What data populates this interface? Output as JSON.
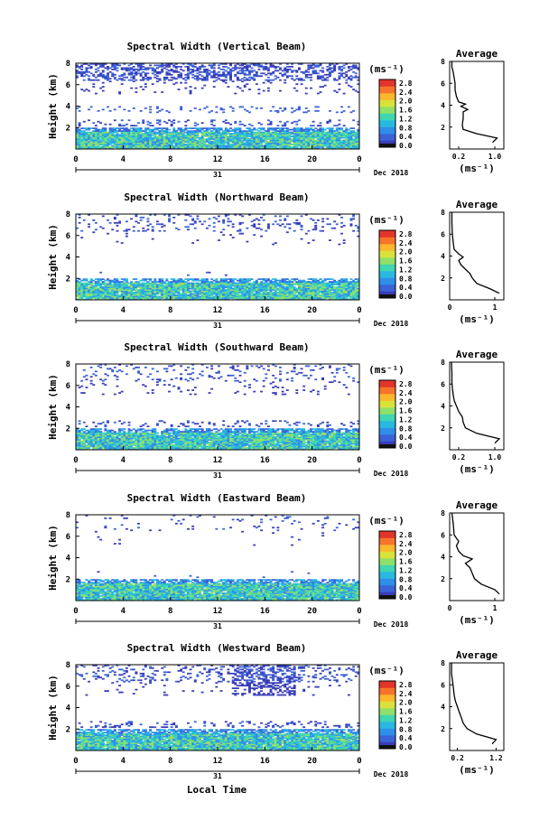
{
  "figure": {
    "xlabel": "Local Time",
    "date_label": "Dec 2018",
    "day_label": "31",
    "ylabel": "Height (km)",
    "colorbar_unit": "(ms⁻¹)",
    "colorbar_ticks": [
      "2.8",
      "2.4",
      "2.0",
      "1.6",
      "1.2",
      "0.8",
      "0.4",
      "0.0"
    ],
    "colormap": [
      "#3a3db8",
      "#3b62d6",
      "#2e8fe8",
      "#29b8e0",
      "#3fd6b0",
      "#8fe06a",
      "#d9e23a",
      "#fbb72d",
      "#f7742a",
      "#e2352a"
    ],
    "avg_title": "Average",
    "avg_xunit": "(ms⁻¹)"
  },
  "chart_data": [
    {
      "type": "heatmap",
      "title": "Spectral Width (Vertical Beam)",
      "x_range": [
        0,
        24
      ],
      "y_range": [
        0,
        8
      ],
      "x_ticks": [
        "0",
        "4",
        "8",
        "12",
        "16",
        "20",
        "0"
      ],
      "y_ticks": [
        "2",
        "4",
        "6",
        "8"
      ],
      "avg_xticks": [
        "0.2",
        "1.0"
      ],
      "avg_xlim": [
        0,
        1.2
      ],
      "avg_profile": [
        [
          0.95,
          0.6
        ],
        [
          1.05,
          1.0
        ],
        [
          0.6,
          1.4
        ],
        [
          0.3,
          1.8
        ],
        [
          0.28,
          2.2
        ],
        [
          0.3,
          2.8
        ],
        [
          0.3,
          3.0
        ],
        [
          0.3,
          3.4
        ],
        [
          0.4,
          3.6
        ],
        [
          0.25,
          3.9
        ],
        [
          0.35,
          4.1
        ],
        [
          0.2,
          4.3
        ],
        [
          0.15,
          4.8
        ],
        [
          0.12,
          5.4
        ],
        [
          0.12,
          6.0
        ],
        [
          0.1,
          6.5
        ],
        [
          0.08,
          7.0
        ],
        [
          0.05,
          7.5
        ],
        [
          0.05,
          8.0
        ]
      ]
    },
    {
      "type": "heatmap",
      "title": "Spectral Width (Northward Beam)",
      "x_range": [
        0,
        24
      ],
      "y_range": [
        0,
        8
      ],
      "x_ticks": [
        "0",
        "4",
        "8",
        "12",
        "16",
        "20",
        "0"
      ],
      "y_ticks": [
        "2",
        "4",
        "6",
        "8"
      ],
      "avg_xticks": [
        "0",
        "1"
      ],
      "avg_xlim": [
        0,
        1.2
      ],
      "avg_profile": [
        [
          1.1,
          0.6
        ],
        [
          0.9,
          1.0
        ],
        [
          0.6,
          1.5
        ],
        [
          0.5,
          2.0
        ],
        [
          0.45,
          2.4
        ],
        [
          0.35,
          2.8
        ],
        [
          0.25,
          3.2
        ],
        [
          0.2,
          3.6
        ],
        [
          0.3,
          3.9
        ],
        [
          0.2,
          4.2
        ],
        [
          0.1,
          4.6
        ],
        [
          0.08,
          5.2
        ],
        [
          0.06,
          6.0
        ],
        [
          0.05,
          7.0
        ],
        [
          0.05,
          8.0
        ]
      ]
    },
    {
      "type": "heatmap",
      "title": "Spectral Width (Southward Beam)",
      "x_range": [
        0,
        24
      ],
      "y_range": [
        0,
        8
      ],
      "x_ticks": [
        "0",
        "4",
        "8",
        "12",
        "16",
        "20",
        "0"
      ],
      "y_ticks": [
        "2",
        "4",
        "6",
        "8"
      ],
      "avg_xticks": [
        "0.2",
        "1.0"
      ],
      "avg_xlim": [
        0,
        1.2
      ],
      "avg_profile": [
        [
          1.0,
          0.6
        ],
        [
          1.1,
          1.0
        ],
        [
          0.6,
          1.5
        ],
        [
          0.35,
          2.0
        ],
        [
          0.3,
          2.5
        ],
        [
          0.28,
          3.0
        ],
        [
          0.2,
          3.5
        ],
        [
          0.15,
          4.0
        ],
        [
          0.1,
          4.5
        ],
        [
          0.08,
          5.0
        ],
        [
          0.06,
          5.6
        ],
        [
          0.05,
          6.2
        ],
        [
          0.05,
          7.0
        ],
        [
          0.04,
          8.0
        ]
      ]
    },
    {
      "type": "heatmap",
      "title": "Spectral Width (Eastward Beam)",
      "x_range": [
        0,
        24
      ],
      "y_range": [
        0,
        8
      ],
      "x_ticks": [
        "0",
        "4",
        "8",
        "12",
        "16",
        "20",
        "0"
      ],
      "y_ticks": [
        "2",
        "4",
        "6",
        "8"
      ],
      "avg_xticks": [
        "0",
        "1"
      ],
      "avg_xlim": [
        0,
        1.2
      ],
      "avg_profile": [
        [
          1.1,
          0.6
        ],
        [
          1.0,
          1.0
        ],
        [
          0.7,
          1.5
        ],
        [
          0.55,
          2.0
        ],
        [
          0.5,
          2.5
        ],
        [
          0.45,
          3.0
        ],
        [
          0.35,
          3.4
        ],
        [
          0.5,
          3.8
        ],
        [
          0.3,
          4.1
        ],
        [
          0.2,
          4.5
        ],
        [
          0.15,
          5.0
        ],
        [
          0.2,
          5.4
        ],
        [
          0.1,
          6.0
        ],
        [
          0.08,
          7.0
        ],
        [
          0.05,
          8.0
        ]
      ]
    },
    {
      "type": "heatmap",
      "title": "Spectral Width (Westward Beam)",
      "x_range": [
        0,
        24
      ],
      "y_range": [
        0,
        8
      ],
      "x_ticks": [
        "0",
        "4",
        "8",
        "12",
        "16",
        "20",
        "0"
      ],
      "y_ticks": [
        "2",
        "4",
        "6",
        "8"
      ],
      "avg_xticks": [
        "0.2",
        "1.2"
      ],
      "avg_xlim": [
        0,
        1.4
      ],
      "avg_profile": [
        [
          1.1,
          0.6
        ],
        [
          1.2,
          1.0
        ],
        [
          0.7,
          1.5
        ],
        [
          0.45,
          2.0
        ],
        [
          0.35,
          2.5
        ],
        [
          0.3,
          3.0
        ],
        [
          0.25,
          3.5
        ],
        [
          0.2,
          4.0
        ],
        [
          0.15,
          4.5
        ],
        [
          0.12,
          5.0
        ],
        [
          0.1,
          5.6
        ],
        [
          0.08,
          6.2
        ],
        [
          0.05,
          7.0
        ],
        [
          0.05,
          8.0
        ]
      ]
    }
  ]
}
